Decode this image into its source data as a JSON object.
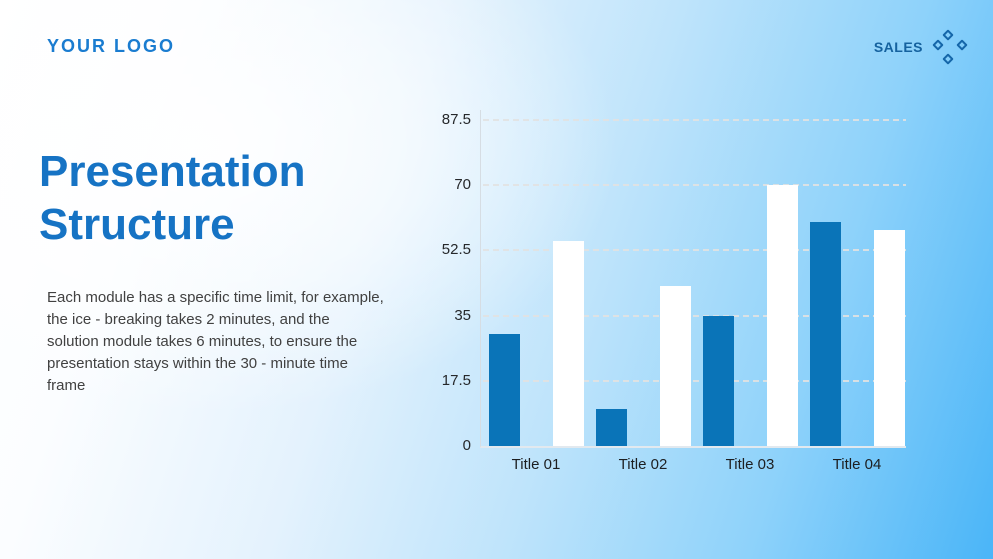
{
  "header": {
    "logo": "YOUR LOGO",
    "badge": "SALES"
  },
  "content": {
    "title_line1": "Presentation",
    "title_line2": "Structure",
    "paragraph": "Each module has a specific time limit, for example, the ice - breaking takes 2 minutes, and the solution module takes 6 minutes, to ensure the presentation stays within the 30 - minute time frame"
  },
  "colors": {
    "title_blue": "#1673c4",
    "logo_blue": "#1a7cd0",
    "badge_blue": "#15629f",
    "bar_blue": "#0a74b8",
    "bar_white": "#ffffff",
    "background_blue": "#4ab5f8"
  },
  "chart_data": {
    "type": "bar",
    "categories": [
      "Title 01",
      "Title 02",
      "Title 03",
      "Title 04"
    ],
    "series": [
      {
        "name": "blue-series",
        "color": "#0a74b8",
        "values": [
          30,
          10,
          35,
          60
        ]
      },
      {
        "name": "white-series",
        "color": "#ffffff",
        "values": [
          55,
          43,
          70,
          58
        ]
      }
    ],
    "yticks": [
      0,
      17.5,
      35,
      52.5,
      70,
      87.5
    ],
    "ytick_labels": [
      "0",
      "17.5",
      "35",
      "52.5",
      "70",
      "87.5"
    ],
    "ylim": [
      0,
      87.5
    ],
    "xlabel": "",
    "ylabel": "",
    "title": "",
    "grid": "horizontal-dashed",
    "legend": "none"
  }
}
